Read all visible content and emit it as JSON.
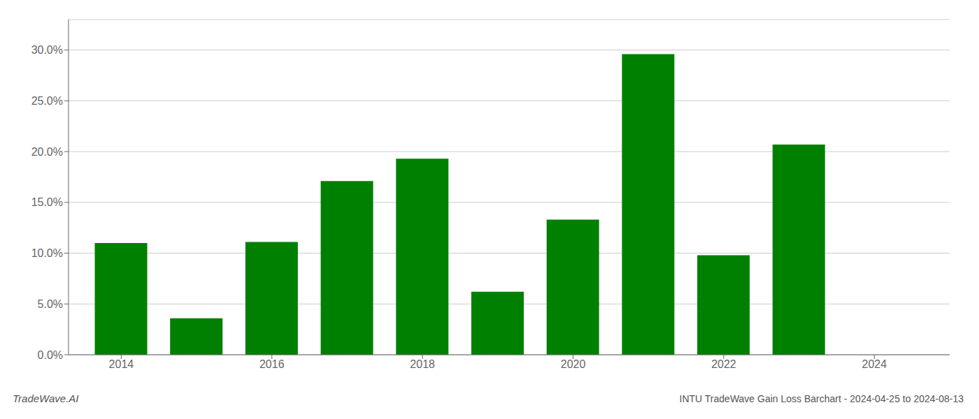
{
  "chart_data": {
    "type": "bar",
    "title": "INTU TradeWave Gain Loss Barchart - 2024-04-25 to 2024-08-13",
    "annotations": [
      "TradeWave.AI"
    ],
    "x": [
      2014,
      2015,
      2016,
      2017,
      2018,
      2019,
      2020,
      2021,
      2022,
      2023,
      2024
    ],
    "values": [
      0.11,
      0.036,
      0.111,
      0.171,
      0.193,
      0.062,
      0.133,
      0.296,
      0.098,
      0.207,
      0.0
    ],
    "color": "#008000",
    "xlim": [
      2013.3,
      2025.0
    ],
    "xticks": [
      2014,
      2016,
      2018,
      2020,
      2022,
      2024
    ],
    "ylim": [
      0,
      0.33
    ],
    "yticks": [
      {
        "value": 0.0,
        "label": "0.0%"
      },
      {
        "value": 0.05,
        "label": "5.0%"
      },
      {
        "value": 0.1,
        "label": "10.0%"
      },
      {
        "value": 0.15,
        "label": "15.0%"
      },
      {
        "value": 0.2,
        "label": "20.0%"
      },
      {
        "value": 0.25,
        "label": "25.0%"
      },
      {
        "value": 0.3,
        "label": "30.0%"
      }
    ],
    "grid": true
  }
}
